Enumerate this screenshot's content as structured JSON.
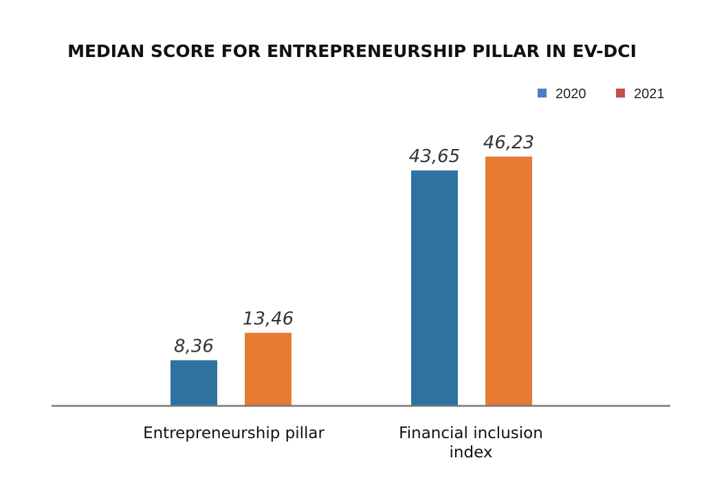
{
  "chart_data": {
    "type": "bar",
    "title": "MEDIAN SCORE FOR ENTREPRENEURSHIP PILLAR IN EV-DCI",
    "categories": [
      "Entrepreneurship pillar",
      "Financial inclusion index"
    ],
    "series": [
      {
        "name": "2020",
        "values": [
          8.36,
          43.65
        ],
        "value_labels": [
          "8,36",
          "43,65"
        ],
        "color": "#2e73a0",
        "legend_color": "#4a7fc1"
      },
      {
        "name": "2021",
        "values": [
          13.46,
          46.23
        ],
        "value_labels": [
          "13,46",
          "46,23"
        ],
        "color": "#e87a34",
        "legend_color": "#c0504d"
      }
    ],
    "xlabel": "",
    "ylabel": "",
    "ylim": [
      0,
      50
    ],
    "grid": false,
    "legend": "top-right"
  }
}
